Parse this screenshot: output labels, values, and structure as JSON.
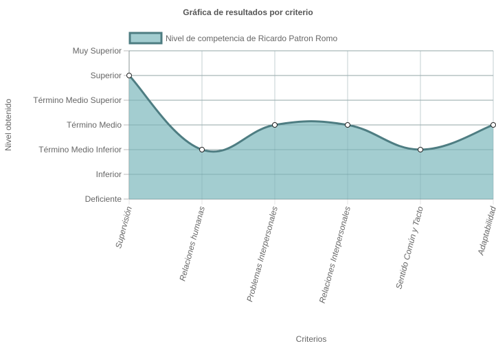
{
  "chart_data": {
    "type": "area",
    "title": "Gráfica de resultados por criterio",
    "xlabel": "Criterios",
    "ylabel": "Nivel obtenido",
    "categories": [
      "Supervisión",
      "Relaciones humanas",
      "Problemas Interpersonales",
      "Relaciones Interpersonales",
      "Sentido Común y Tacto",
      "Adaptabilidad"
    ],
    "y_levels": [
      "Deficiente",
      "Inferior",
      "Término Medio Inferior",
      "Término Medio",
      "Término Medio Superior",
      "Superior",
      "Muy Superior"
    ],
    "ylim": [
      0,
      6
    ],
    "series": [
      {
        "name": "Nivel de competencia de Ricardo Patron Romo",
        "values": [
          5,
          2,
          3,
          3,
          2,
          3
        ],
        "levels": [
          "Superior",
          "Término Medio Inferior",
          "Término Medio",
          "Término Medio",
          "Término Medio Inferior",
          "Término Medio"
        ]
      }
    ],
    "colors": {
      "fill": "#a3cdd0",
      "stroke": "#4e7d82",
      "grid": "#bbbbbb"
    },
    "legend": "top",
    "grid": true
  }
}
